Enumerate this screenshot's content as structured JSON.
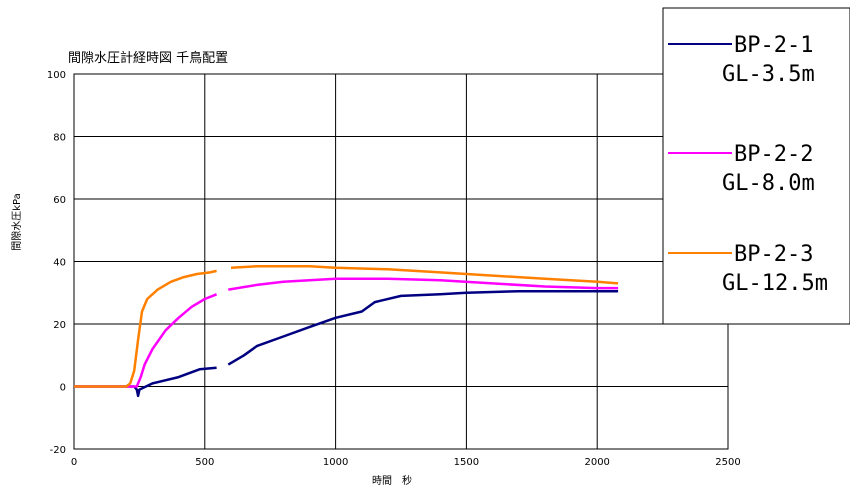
{
  "chart_data": {
    "type": "line",
    "title": "間隙水圧計経時図 千鳥配置",
    "xlabel": "時間　秒",
    "ylabel": "間隙水圧kPa",
    "xlim": [
      0,
      2500
    ],
    "ylim": [
      -20,
      100
    ],
    "xticks": [
      "0",
      "500",
      "1000",
      "1500",
      "2000",
      "2500"
    ],
    "yticks": [
      "-20",
      "0",
      "20",
      "40",
      "60",
      "80",
      "100"
    ],
    "grid": true,
    "legend_position": "top-right",
    "series": [
      {
        "name_line1": "BP-2-1",
        "name_line2": "GL-3.5m",
        "color": "#000080",
        "segments": [
          [
            [
              0,
              0
            ],
            [
              230,
              0
            ],
            [
              240,
              -1
            ],
            [
              245,
              -3
            ],
            [
              250,
              -1
            ],
            [
              300,
              1
            ],
            [
              400,
              3
            ],
            [
              480,
              5.5
            ],
            [
              545,
              6
            ]
          ],
          [
            [
              590,
              7
            ],
            [
              650,
              10
            ],
            [
              700,
              13
            ],
            [
              800,
              16
            ],
            [
              900,
              19
            ],
            [
              1000,
              22
            ],
            [
              1100,
              24
            ],
            [
              1150,
              27
            ],
            [
              1250,
              29
            ],
            [
              1400,
              29.5
            ],
            [
              1500,
              30
            ],
            [
              1700,
              30.5
            ],
            [
              2000,
              30.5
            ],
            [
              2080,
              30.5
            ]
          ]
        ]
      },
      {
        "name_line1": "BP-2-2",
        "name_line2": "GL-8.0m",
        "color": "#FF00FF",
        "segments": [
          [
            [
              0,
              0
            ],
            [
              240,
              0
            ],
            [
              255,
              3
            ],
            [
              270,
              7
            ],
            [
              300,
              12
            ],
            [
              350,
              18
            ],
            [
              400,
              22
            ],
            [
              450,
              25.5
            ],
            [
              500,
              28
            ],
            [
              545,
              29.5
            ]
          ],
          [
            [
              590,
              31
            ],
            [
              700,
              32.5
            ],
            [
              800,
              33.5
            ],
            [
              900,
              34
            ],
            [
              1000,
              34.5
            ],
            [
              1200,
              34.5
            ],
            [
              1400,
              34
            ],
            [
              1600,
              33
            ],
            [
              1800,
              32
            ],
            [
              2000,
              31.5
            ],
            [
              2080,
              31.5
            ]
          ]
        ]
      },
      {
        "name_line1": "BP-2-3",
        "name_line2": "GL-12.5m",
        "color": "#FF8000",
        "segments": [
          [
            [
              0,
              0
            ],
            [
              200,
              0
            ],
            [
              215,
              1
            ],
            [
              230,
              5
            ],
            [
              245,
              15
            ],
            [
              260,
              24
            ],
            [
              280,
              28
            ],
            [
              320,
              31
            ],
            [
              370,
              33.5
            ],
            [
              420,
              35
            ],
            [
              470,
              36
            ],
            [
              520,
              36.5
            ],
            [
              545,
              37
            ]
          ],
          [
            [
              600,
              38
            ],
            [
              700,
              38.5
            ],
            [
              900,
              38.5
            ],
            [
              1000,
              38
            ],
            [
              1200,
              37.5
            ],
            [
              1400,
              36.5
            ],
            [
              1600,
              35.5
            ],
            [
              1800,
              34.5
            ],
            [
              2000,
              33.5
            ],
            [
              2080,
              33
            ]
          ]
        ]
      }
    ]
  }
}
